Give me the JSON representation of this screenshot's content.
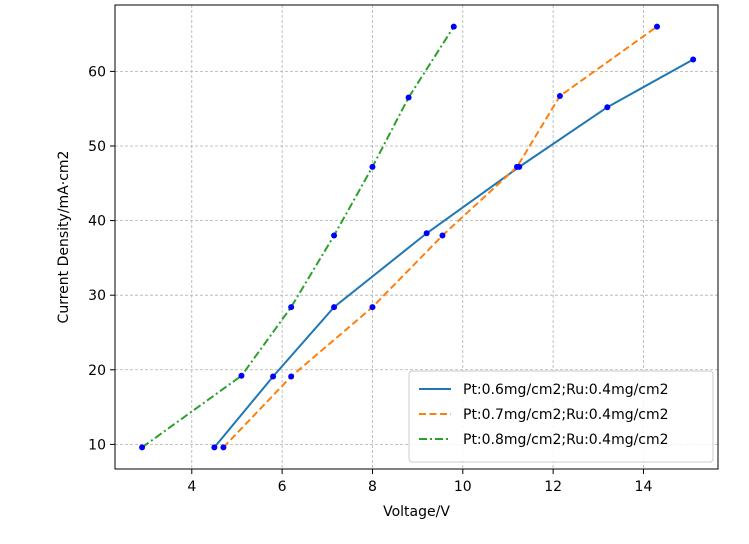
{
  "chart_data": {
    "type": "line",
    "title": "",
    "xlabel": "Voltage/V",
    "ylabel": "Current Density/mA·cm2",
    "xlim": [
      2.3,
      15.65
    ],
    "ylim": [
      6.7,
      68.9
    ],
    "xticks": [
      4,
      6,
      8,
      10,
      12,
      14
    ],
    "yticks": [
      10,
      20,
      30,
      40,
      50,
      60
    ],
    "grid": true,
    "legend_position": "lower-right",
    "series": [
      {
        "name": "Pt:0.6mg/cm2;Ru:0.4mg/cm2",
        "color": "#1f77b4",
        "dash": "solid",
        "x": [
          4.5,
          5.8,
          7.15,
          9.2,
          11.25,
          13.2,
          15.1
        ],
        "y": [
          9.6,
          19.1,
          28.4,
          38.3,
          47.2,
          55.2,
          61.6
        ]
      },
      {
        "name": "Pt:0.7mg/cm2;Ru:0.4mg/cm2",
        "color": "#ff7f0e",
        "dash": "dashed",
        "x": [
          4.7,
          6.2,
          8.0,
          9.55,
          11.2,
          12.15,
          14.3
        ],
        "y": [
          9.6,
          19.1,
          28.4,
          38.0,
          47.2,
          56.7,
          66.0
        ]
      },
      {
        "name": "Pt:0.8mg/cm2;Ru:0.4mg/cm2",
        "color": "#2ca02c",
        "dash": "dashdot",
        "x": [
          2.9,
          5.1,
          6.2,
          7.15,
          8.0,
          8.8,
          9.8
        ],
        "y": [
          9.6,
          19.2,
          28.4,
          38.0,
          47.2,
          56.5,
          66.0
        ]
      }
    ],
    "marker_color": "#0000ff"
  }
}
